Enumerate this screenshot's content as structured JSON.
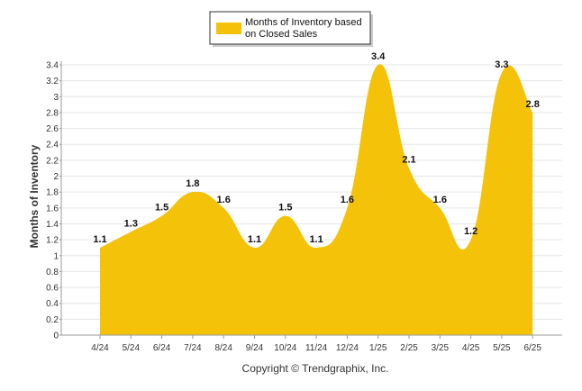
{
  "chart_data": {
    "type": "area",
    "categories": [
      "4/24",
      "5/24",
      "6/24",
      "7/24",
      "8/24",
      "9/24",
      "10/24",
      "11/24",
      "12/24",
      "1/25",
      "2/25",
      "3/25",
      "4/25",
      "5/25",
      "6/25"
    ],
    "series": [
      {
        "name": "Months of Inventory based on Closed Sales",
        "values": [
          1.1,
          1.3,
          1.5,
          1.8,
          1.6,
          1.1,
          1.5,
          1.1,
          1.6,
          3.4,
          2.1,
          1.6,
          1.2,
          3.3,
          2.8
        ],
        "color": "#F5C20A"
      }
    ],
    "data_labels": [
      "1.1",
      "1.3",
      "1.5",
      "1.8",
      "1.6",
      "1.1",
      "1.5",
      "1.1",
      "1.6",
      "3.4",
      "2.1",
      "1.6",
      "1.2",
      "3.3",
      "2.8"
    ],
    "legend_lines": [
      "Months of Inventory based",
      "on Closed Sales"
    ],
    "ylabel": "Months of Inventory",
    "xlabel": "",
    "ylim": [
      0,
      3.4
    ],
    "yticks": [
      "0",
      "0.2",
      "0.4",
      "0.6",
      "0.8",
      "1",
      "1.2",
      "1.4",
      "1.6",
      "1.8",
      "2",
      "2.2",
      "2.4",
      "2.6",
      "2.8",
      "3",
      "3.2",
      "3.4"
    ],
    "grid": true,
    "legend_position": "top-center"
  },
  "footer": {
    "copyright": "Copyright © Trendgraphix, Inc."
  },
  "colors": {
    "fill": "#F5C20A",
    "grid": "#E6E6E6",
    "axis": "#999999"
  }
}
